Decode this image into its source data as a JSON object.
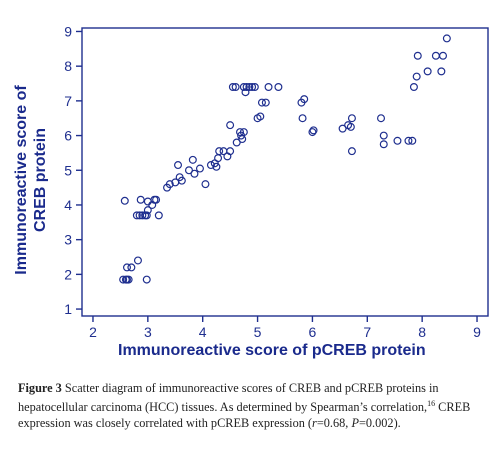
{
  "chart_data": {
    "type": "scatter",
    "xlabel": "Immunoreactive score of pCREB protein",
    "ylabel_line1": "Immunoreactive score of",
    "ylabel_line2": "CREB protein",
    "xlim": [
      1.8,
      9.2
    ],
    "ylim": [
      0.8,
      9.1
    ],
    "xticks": [
      2,
      3,
      4,
      5,
      6,
      7,
      8,
      9
    ],
    "yticks": [
      1,
      2,
      3,
      4,
      5,
      6,
      7,
      8,
      9
    ],
    "grid": false,
    "colors": {
      "marker": "#1f2f8f",
      "axis": "#1f2f8f",
      "label": "#1a2a8c"
    },
    "points": [
      [
        2.55,
        1.85
      ],
      [
        2.6,
        1.85
      ],
      [
        2.65,
        1.85
      ],
      [
        2.98,
        1.85
      ],
      [
        2.62,
        2.2
      ],
      [
        2.7,
        2.2
      ],
      [
        2.82,
        2.4
      ],
      [
        2.62,
        1.85
      ],
      [
        2.58,
        4.12
      ],
      [
        2.8,
        3.7
      ],
      [
        2.85,
        3.7
      ],
      [
        2.9,
        3.7
      ],
      [
        2.95,
        3.7
      ],
      [
        2.98,
        3.7
      ],
      [
        2.87,
        4.15
      ],
      [
        3.0,
        3.85
      ],
      [
        3.0,
        4.1
      ],
      [
        3.08,
        4.0
      ],
      [
        3.12,
        4.15
      ],
      [
        3.15,
        4.15
      ],
      [
        3.2,
        3.7
      ],
      [
        3.35,
        4.5
      ],
      [
        3.4,
        4.6
      ],
      [
        3.5,
        4.65
      ],
      [
        3.55,
        5.15
      ],
      [
        3.58,
        4.8
      ],
      [
        3.62,
        4.7
      ],
      [
        3.75,
        5.0
      ],
      [
        3.82,
        5.3
      ],
      [
        3.85,
        4.9
      ],
      [
        3.95,
        5.05
      ],
      [
        4.05,
        4.6
      ],
      [
        4.15,
        5.15
      ],
      [
        4.22,
        5.2
      ],
      [
        4.25,
        5.1
      ],
      [
        4.28,
        5.35
      ],
      [
        4.3,
        5.55
      ],
      [
        4.38,
        5.55
      ],
      [
        4.45,
        5.4
      ],
      [
        4.5,
        6.3
      ],
      [
        4.5,
        5.55
      ],
      [
        4.55,
        7.4
      ],
      [
        4.6,
        7.4
      ],
      [
        4.62,
        5.8
      ],
      [
        4.68,
        6.1
      ],
      [
        4.7,
        6.0
      ],
      [
        4.72,
        5.9
      ],
      [
        4.75,
        6.1
      ],
      [
        4.75,
        7.4
      ],
      [
        4.78,
        7.25
      ],
      [
        4.8,
        7.4
      ],
      [
        4.85,
        7.4
      ],
      [
        4.9,
        7.4
      ],
      [
        4.95,
        7.4
      ],
      [
        5.0,
        6.5
      ],
      [
        5.05,
        6.55
      ],
      [
        5.08,
        6.95
      ],
      [
        5.15,
        6.95
      ],
      [
        5.2,
        7.4
      ],
      [
        5.38,
        7.4
      ],
      [
        5.8,
        6.95
      ],
      [
        5.85,
        7.05
      ],
      [
        5.82,
        6.5
      ],
      [
        6.0,
        6.1
      ],
      [
        6.02,
        6.15
      ],
      [
        6.55,
        6.2
      ],
      [
        6.65,
        6.3
      ],
      [
        6.7,
        6.25
      ],
      [
        6.72,
        6.5
      ],
      [
        6.72,
        5.55
      ],
      [
        7.25,
        6.5
      ],
      [
        7.3,
        6.0
      ],
      [
        7.3,
        5.75
      ],
      [
        7.55,
        5.85
      ],
      [
        7.75,
        5.85
      ],
      [
        7.82,
        5.85
      ],
      [
        7.85,
        7.4
      ],
      [
        7.9,
        7.7
      ],
      [
        7.92,
        8.3
      ],
      [
        8.1,
        7.85
      ],
      [
        8.25,
        8.3
      ],
      [
        8.35,
        7.85
      ],
      [
        8.38,
        8.3
      ],
      [
        8.45,
        8.8
      ]
    ]
  },
  "caption": {
    "fig_label": "Figure 3",
    "text_1": " Scatter diagram of immunoreactive scores of CREB and pCREB proteins in hepatocellular carcinoma (HCC) tissues. As determined by Spearman’s correlation,",
    "ref": "16",
    "text_2": " CREB expression was closely correlated with pCREB expression (",
    "r_symbol": "r",
    "r_value": "=0.68, ",
    "p_symbol": "P",
    "p_value": "=0.002)."
  }
}
